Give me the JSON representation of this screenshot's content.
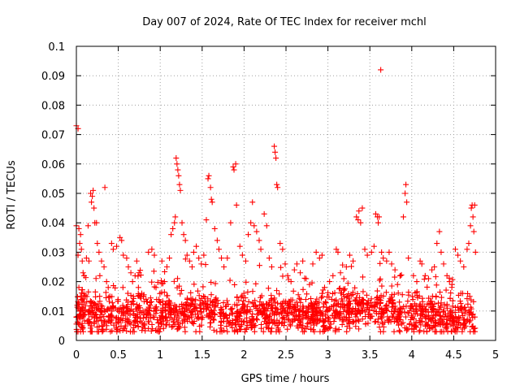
{
  "chart_data": {
    "type": "scatter",
    "title": "Day 007 of 2024, Rate Of TEC Index for receiver mchl",
    "xlabel": "GPS time / hours",
    "ylabel": "ROTI / TECUs",
    "xlim": [
      0,
      5
    ],
    "ylim": [
      0,
      0.1
    ],
    "x_ticks": [
      0,
      0.5,
      1,
      1.5,
      2,
      2.5,
      3,
      3.5,
      4,
      4.5,
      5
    ],
    "x_tick_labels": [
      "0",
      "0.5",
      "1",
      "1.5",
      "2",
      "2.5",
      "3",
      "3.5",
      "4",
      "4.5",
      "5"
    ],
    "y_ticks": [
      0,
      0.01,
      0.02,
      0.03,
      0.04,
      0.05,
      0.06,
      0.07,
      0.08,
      0.09,
      0.1
    ],
    "y_tick_labels": [
      "0",
      "0.01",
      "0.02",
      "0.03",
      "0.04",
      "0.05",
      "0.06",
      "0.07",
      "0.08",
      "0.09",
      "0.1"
    ],
    "grid": true,
    "marker": "+",
    "marker_color": "#ff0000",
    "series": [
      {
        "name": "ROTI",
        "points": [
          [
            0.0,
            0.073
          ],
          [
            0.02,
            0.072
          ],
          [
            0.0,
            0.039
          ],
          [
            0.03,
            0.038
          ],
          [
            0.05,
            0.036
          ],
          [
            0.04,
            0.033
          ],
          [
            0.06,
            0.031
          ],
          [
            0.02,
            0.029
          ],
          [
            0.07,
            0.027
          ],
          [
            0.08,
            0.023
          ],
          [
            0.03,
            0.018
          ],
          [
            0.05,
            0.015
          ],
          [
            0.01,
            0.012
          ],
          [
            0.04,
            0.01
          ],
          [
            0.06,
            0.008
          ],
          [
            0.07,
            0.005
          ],
          [
            0.05,
            0.003
          ],
          [
            0.08,
            0.011
          ],
          [
            0.09,
            0.013
          ],
          [
            0.12,
            0.028
          ],
          [
            0.15,
            0.027
          ],
          [
            0.17,
            0.05
          ],
          [
            0.19,
            0.049
          ],
          [
            0.2,
            0.051
          ],
          [
            0.18,
            0.047
          ],
          [
            0.21,
            0.045
          ],
          [
            0.22,
            0.04
          ],
          [
            0.24,
            0.04
          ],
          [
            0.25,
            0.033
          ],
          [
            0.14,
            0.039
          ],
          [
            0.27,
            0.03
          ],
          [
            0.28,
            0.022
          ],
          [
            0.3,
            0.027
          ],
          [
            0.34,
            0.052
          ],
          [
            0.33,
            0.025
          ],
          [
            0.36,
            0.02
          ],
          [
            0.38,
            0.018
          ],
          [
            0.4,
            0.015
          ],
          [
            0.42,
            0.033
          ],
          [
            0.44,
            0.031
          ],
          [
            0.48,
            0.032
          ],
          [
            0.52,
            0.035
          ],
          [
            0.54,
            0.034
          ],
          [
            0.56,
            0.029
          ],
          [
            0.6,
            0.028
          ],
          [
            0.62,
            0.025
          ],
          [
            0.65,
            0.023
          ],
          [
            0.67,
            0.02
          ],
          [
            0.7,
            0.022
          ],
          [
            0.72,
            0.027
          ],
          [
            0.74,
            0.018
          ],
          [
            0.78,
            0.016
          ],
          [
            0.8,
            0.015
          ],
          [
            0.83,
            0.014
          ],
          [
            0.86,
            0.03
          ],
          [
            0.9,
            0.031
          ],
          [
            0.93,
            0.029
          ],
          [
            0.95,
            0.018
          ],
          [
            1.02,
            0.027
          ],
          [
            1.05,
            0.02
          ],
          [
            1.08,
            0.025
          ],
          [
            1.11,
            0.028
          ],
          [
            1.13,
            0.036
          ],
          [
            1.15,
            0.038
          ],
          [
            1.17,
            0.04
          ],
          [
            1.18,
            0.042
          ],
          [
            1.19,
            0.062
          ],
          [
            1.2,
            0.06
          ],
          [
            1.21,
            0.058
          ],
          [
            1.22,
            0.056
          ],
          [
            1.23,
            0.053
          ],
          [
            1.24,
            0.051
          ],
          [
            1.26,
            0.04
          ],
          [
            1.28,
            0.036
          ],
          [
            1.3,
            0.034
          ],
          [
            1.32,
            0.029
          ],
          [
            1.35,
            0.027
          ],
          [
            1.38,
            0.025
          ],
          [
            1.4,
            0.03
          ],
          [
            1.43,
            0.032
          ],
          [
            1.46,
            0.028
          ],
          [
            1.49,
            0.026
          ],
          [
            1.52,
            0.029
          ],
          [
            1.55,
            0.041
          ],
          [
            1.57,
            0.055
          ],
          [
            1.58,
            0.056
          ],
          [
            1.6,
            0.052
          ],
          [
            1.61,
            0.048
          ],
          [
            1.62,
            0.047
          ],
          [
            1.65,
            0.038
          ],
          [
            1.68,
            0.034
          ],
          [
            1.7,
            0.031
          ],
          [
            1.73,
            0.028
          ],
          [
            1.76,
            0.025
          ],
          [
            1.8,
            0.028
          ],
          [
            1.84,
            0.04
          ],
          [
            1.87,
            0.059
          ],
          [
            1.88,
            0.058
          ],
          [
            1.9,
            0.06
          ],
          [
            1.91,
            0.046
          ],
          [
            1.95,
            0.032
          ],
          [
            1.98,
            0.029
          ],
          [
            2.02,
            0.027
          ],
          [
            2.05,
            0.036
          ],
          [
            2.08,
            0.04
          ],
          [
            2.1,
            0.047
          ],
          [
            2.12,
            0.039
          ],
          [
            2.15,
            0.037
          ],
          [
            2.18,
            0.034
          ],
          [
            2.2,
            0.031
          ],
          [
            2.24,
            0.043
          ],
          [
            2.27,
            0.039
          ],
          [
            2.3,
            0.028
          ],
          [
            2.33,
            0.025
          ],
          [
            2.36,
            0.066
          ],
          [
            2.37,
            0.064
          ],
          [
            2.38,
            0.062
          ],
          [
            2.39,
            0.053
          ],
          [
            2.4,
            0.052
          ],
          [
            2.43,
            0.033
          ],
          [
            2.46,
            0.031
          ],
          [
            2.49,
            0.026
          ],
          [
            2.52,
            0.022
          ],
          [
            2.56,
            0.02
          ],
          [
            2.6,
            0.024
          ],
          [
            2.63,
            0.026
          ],
          [
            2.67,
            0.023
          ],
          [
            2.7,
            0.027
          ],
          [
            2.74,
            0.021
          ],
          [
            2.78,
            0.019
          ],
          [
            2.82,
            0.026
          ],
          [
            2.86,
            0.03
          ],
          [
            2.9,
            0.028
          ],
          [
            2.93,
            0.029
          ],
          [
            2.96,
            0.018
          ],
          [
            3.02,
            0.02
          ],
          [
            3.06,
            0.022
          ],
          [
            3.1,
            0.031
          ],
          [
            3.12,
            0.03
          ],
          [
            3.15,
            0.023
          ],
          [
            3.19,
            0.021
          ],
          [
            3.22,
            0.025
          ],
          [
            3.26,
            0.029
          ],
          [
            3.3,
            0.027
          ],
          [
            3.34,
            0.042
          ],
          [
            3.36,
            0.041
          ],
          [
            3.37,
            0.044
          ],
          [
            3.39,
            0.04
          ],
          [
            3.41,
            0.045
          ],
          [
            3.44,
            0.031
          ],
          [
            3.47,
            0.029
          ],
          [
            3.52,
            0.03
          ],
          [
            3.55,
            0.032
          ],
          [
            3.57,
            0.043
          ],
          [
            3.59,
            0.042
          ],
          [
            3.6,
            0.04
          ],
          [
            3.61,
            0.042
          ],
          [
            3.63,
            0.092
          ],
          [
            3.64,
            0.03
          ],
          [
            3.66,
            0.028
          ],
          [
            3.7,
            0.027
          ],
          [
            3.73,
            0.03
          ],
          [
            3.76,
            0.026
          ],
          [
            3.8,
            0.024
          ],
          [
            3.83,
            0.019
          ],
          [
            3.86,
            0.022
          ],
          [
            3.9,
            0.042
          ],
          [
            3.92,
            0.05
          ],
          [
            3.93,
            0.053
          ],
          [
            3.94,
            0.047
          ],
          [
            3.96,
            0.028
          ],
          [
            4.02,
            0.022
          ],
          [
            4.06,
            0.02
          ],
          [
            4.1,
            0.027
          ],
          [
            4.12,
            0.026
          ],
          [
            4.16,
            0.022
          ],
          [
            4.2,
            0.021
          ],
          [
            4.24,
            0.024
          ],
          [
            4.27,
            0.025
          ],
          [
            4.3,
            0.033
          ],
          [
            4.33,
            0.037
          ],
          [
            4.35,
            0.03
          ],
          [
            4.38,
            0.026
          ],
          [
            4.42,
            0.022
          ],
          [
            4.45,
            0.02
          ],
          [
            4.48,
            0.019
          ],
          [
            4.52,
            0.031
          ],
          [
            4.55,
            0.029
          ],
          [
            4.58,
            0.027
          ],
          [
            4.62,
            0.025
          ],
          [
            4.66,
            0.031
          ],
          [
            4.68,
            0.033
          ],
          [
            4.7,
            0.039
          ],
          [
            4.71,
            0.045
          ],
          [
            4.72,
            0.046
          ],
          [
            4.73,
            0.042
          ],
          [
            4.74,
            0.037
          ],
          [
            4.75,
            0.046
          ],
          [
            4.76,
            0.03
          ]
        ]
      }
    ]
  }
}
